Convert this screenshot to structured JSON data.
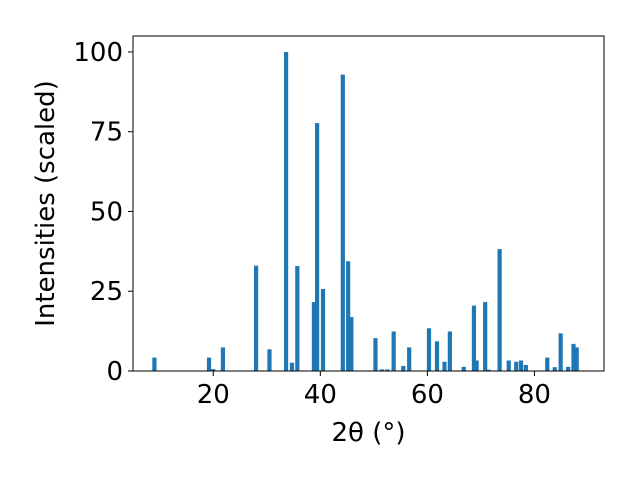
{
  "chart_data": {
    "type": "bar",
    "xlabel": "2θ (°)",
    "ylabel": "Intensities (scaled)",
    "xlim": [
      5,
      93
    ],
    "ylim": [
      0,
      105
    ],
    "xticks": [
      20,
      40,
      60,
      80
    ],
    "yticks": [
      0,
      25,
      50,
      75,
      100
    ],
    "bar_color": "#1f77b4",
    "grid": false,
    "x": [
      9,
      19.2,
      20,
      21.8,
      28,
      30.5,
      33.6,
      34.7,
      35.7,
      38.8,
      39.4,
      40.5,
      44.2,
      45.2,
      45.8,
      50.3,
      51.5,
      52.5,
      53.7,
      55.5,
      56.6,
      60.3,
      61.8,
      63.2,
      64.2,
      66.8,
      68.7,
      69.2,
      70.8,
      71.5,
      73.5,
      75.2,
      76.6,
      77.5,
      78.4,
      82.4,
      83.8,
      84.9,
      86.3,
      87.3,
      87.9
    ],
    "values": [
      4.2,
      4.2,
      0.6,
      7.4,
      33,
      6.8,
      100,
      2.6,
      32.9,
      21.6,
      77.7,
      25.7,
      92.9,
      34.4,
      16.9,
      10.3,
      0.5,
      0.5,
      12.4,
      1.6,
      7.4,
      13.4,
      9.3,
      2.9,
      12.4,
      1.3,
      20.5,
      3.3,
      21.6,
      0.4,
      38.2,
      3.3,
      2.9,
      3.3,
      1.9,
      4.2,
      1.2,
      11.8,
      1.3,
      8.5,
      7.4
    ]
  }
}
